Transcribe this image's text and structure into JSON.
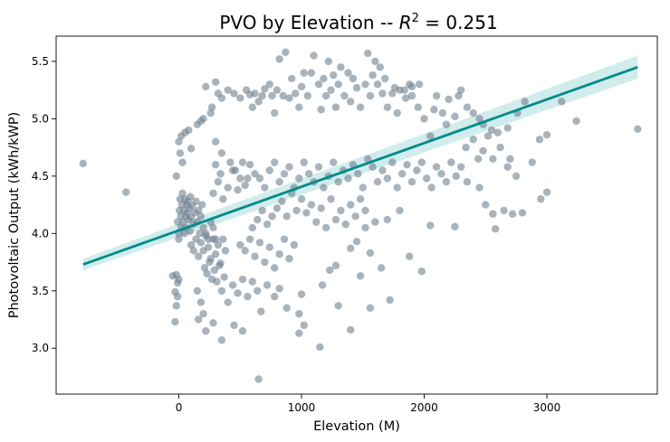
{
  "chart_data": {
    "type": "scatter",
    "title_prefix": "PVO by Elevation -- ",
    "title_r2_symbol": "R",
    "title_r2_exp": "2",
    "title_suffix": " = 0.251",
    "title": "PVO by Elevation -- R^2 = 0.251",
    "xlabel": "Elevation (M)",
    "ylabel": "Photovoltaic Output (kWh/kWP)",
    "xlim": [
      -1000,
      3900
    ],
    "ylim": [
      2.6,
      5.72
    ],
    "xticks": [
      0,
      1000,
      2000,
      3000
    ],
    "xtick_labels": [
      "0",
      "1000",
      "2000",
      "3000"
    ],
    "yticks": [
      3.0,
      3.5,
      4.0,
      4.5,
      5.0,
      5.5
    ],
    "ytick_labels": [
      "3.0",
      "3.5",
      "4.0",
      "4.5",
      "5.0",
      "5.5"
    ],
    "grid": false,
    "point_color": "#708090",
    "regression": {
      "x": [
        -780,
        3740
      ],
      "y": [
        3.73,
        5.45
      ],
      "ci_half_width": [
        0.05,
        0.1
      ],
      "line_color": "#008b8b",
      "band_color": "#b2dfdf"
    },
    "points": [
      [
        -780,
        4.61
      ],
      [
        -430,
        4.36
      ],
      [
        -50,
        3.63
      ],
      [
        -20,
        3.37
      ],
      [
        -30,
        3.23
      ],
      [
        -10,
        3.57
      ],
      [
        -20,
        3.64
      ],
      [
        -30,
        3.49
      ],
      [
        -10,
        3.45
      ],
      [
        0,
        3.6
      ],
      [
        0,
        3.95
      ],
      [
        -10,
        4.1
      ],
      [
        -20,
        4.5
      ],
      [
        0,
        4.8
      ],
      [
        10,
        4.7
      ],
      [
        20,
        4.85
      ],
      [
        30,
        4.62
      ],
      [
        50,
        4.88
      ],
      [
        80,
        4.9
      ],
      [
        100,
        4.74
      ],
      [
        0,
        4.0
      ],
      [
        5,
        4.2
      ],
      [
        10,
        4.3
      ],
      [
        15,
        4.15
      ],
      [
        20,
        4.05
      ],
      [
        25,
        4.25
      ],
      [
        30,
        4.35
      ],
      [
        35,
        4.1
      ],
      [
        40,
        4.2
      ],
      [
        45,
        4.0
      ],
      [
        50,
        4.3
      ],
      [
        55,
        4.15
      ],
      [
        60,
        4.05
      ],
      [
        65,
        4.25
      ],
      [
        70,
        4.18
      ],
      [
        75,
        4.28
      ],
      [
        80,
        4.12
      ],
      [
        85,
        4.22
      ],
      [
        90,
        4.02
      ],
      [
        95,
        4.32
      ],
      [
        100,
        4.14
      ],
      [
        110,
        4.24
      ],
      [
        120,
        4.08
      ],
      [
        130,
        4.18
      ],
      [
        140,
        4.28
      ],
      [
        150,
        4.1
      ],
      [
        160,
        4.2
      ],
      [
        170,
        4.0
      ],
      [
        180,
        4.15
      ],
      [
        190,
        4.25
      ],
      [
        100,
        3.9
      ],
      [
        120,
        3.85
      ],
      [
        140,
        3.95
      ],
      [
        160,
        3.8
      ],
      [
        180,
        3.92
      ],
      [
        200,
        3.85
      ],
      [
        220,
        3.98
      ],
      [
        240,
        3.88
      ],
      [
        260,
        3.78
      ],
      [
        280,
        3.95
      ],
      [
        300,
        3.82
      ],
      [
        320,
        3.9
      ],
      [
        340,
        3.74
      ],
      [
        360,
        3.95
      ],
      [
        380,
        3.85
      ],
      [
        200,
        4.05
      ],
      [
        220,
        4.0
      ],
      [
        240,
        3.95
      ],
      [
        260,
        4.1
      ],
      [
        280,
        4.05
      ],
      [
        300,
        3.95
      ],
      [
        210,
        3.7
      ],
      [
        230,
        3.65
      ],
      [
        250,
        3.75
      ],
      [
        270,
        3.6
      ],
      [
        290,
        3.68
      ],
      [
        310,
        3.58
      ],
      [
        330,
        3.72
      ],
      [
        350,
        3.5
      ],
      [
        370,
        3.62
      ],
      [
        150,
        3.5
      ],
      [
        180,
        3.4
      ],
      [
        200,
        3.3
      ],
      [
        160,
        3.25
      ],
      [
        220,
        3.15
      ],
      [
        280,
        3.22
      ],
      [
        350,
        3.07
      ],
      [
        450,
        3.2
      ],
      [
        520,
        3.15
      ],
      [
        650,
        2.73
      ],
      [
        670,
        3.32
      ],
      [
        720,
        3.55
      ],
      [
        780,
        3.45
      ],
      [
        820,
        3.52
      ],
      [
        880,
        3.35
      ],
      [
        980,
        3.3
      ],
      [
        1000,
        3.47
      ],
      [
        1020,
        3.2
      ],
      [
        980,
        3.13
      ],
      [
        1150,
        3.01
      ],
      [
        1170,
        3.55
      ],
      [
        1230,
        3.68
      ],
      [
        1280,
        3.72
      ],
      [
        1300,
        3.37
      ],
      [
        1400,
        3.16
      ],
      [
        1480,
        3.63
      ],
      [
        1560,
        3.35
      ],
      [
        1650,
        3.7
      ],
      [
        1720,
        3.42
      ],
      [
        1560,
        3.83
      ],
      [
        1400,
        3.87
      ],
      [
        1450,
        3.93
      ],
      [
        1520,
        4.05
      ],
      [
        1600,
        4.1
      ],
      [
        1700,
        4.12
      ],
      [
        1800,
        4.2
      ],
      [
        1880,
        3.8
      ],
      [
        1980,
        3.67
      ],
      [
        2050,
        4.07
      ],
      [
        2250,
        4.06
      ],
      [
        2350,
        4.45
      ],
      [
        2450,
        4.4
      ],
      [
        2500,
        4.25
      ],
      [
        2560,
        4.17
      ],
      [
        2580,
        4.04
      ],
      [
        2650,
        4.2
      ],
      [
        2720,
        4.17
      ],
      [
        2800,
        4.18
      ],
      [
        2950,
        4.3
      ],
      [
        3000,
        4.36
      ],
      [
        3000,
        4.86
      ],
      [
        2940,
        4.82
      ],
      [
        2880,
        4.62
      ],
      [
        2750,
        4.5
      ],
      [
        2700,
        4.65
      ],
      [
        2680,
        4.58
      ],
      [
        2620,
        4.75
      ],
      [
        2560,
        4.65
      ],
      [
        2550,
        4.9
      ],
      [
        2520,
        4.85
      ],
      [
        2480,
        4.95
      ],
      [
        2450,
        5.0
      ],
      [
        2400,
        5.05
      ],
      [
        2350,
        5.1
      ],
      [
        2300,
        5.25
      ],
      [
        2280,
        5.2
      ],
      [
        2250,
        5.02
      ],
      [
        2200,
        5.17
      ],
      [
        2180,
        4.95
      ],
      [
        2150,
        5.05
      ],
      [
        2100,
        5.2
      ],
      [
        2080,
        5.08
      ],
      [
        2050,
        4.85
      ],
      [
        2000,
        5.0
      ],
      [
        1950,
        5.1
      ],
      [
        1900,
        5.2
      ],
      [
        1880,
        5.3
      ],
      [
        1850,
        5.18
      ],
      [
        1800,
        5.25
      ],
      [
        1780,
        5.05
      ],
      [
        1760,
        5.27
      ],
      [
        1740,
        5.22
      ],
      [
        1700,
        5.1
      ],
      [
        1680,
        5.35
      ],
      [
        1660,
        5.22
      ],
      [
        1640,
        5.45
      ],
      [
        1620,
        5.3
      ],
      [
        1600,
        5.5
      ],
      [
        1580,
        5.38
      ],
      [
        1560,
        5.2
      ],
      [
        1540,
        5.57
      ],
      [
        1520,
        5.3
      ],
      [
        1480,
        5.1
      ],
      [
        1450,
        5.27
      ],
      [
        1420,
        5.35
      ],
      [
        1400,
        5.15
      ],
      [
        1380,
        5.4
      ],
      [
        1350,
        5.2
      ],
      [
        1320,
        5.45
      ],
      [
        1300,
        5.3
      ],
      [
        1280,
        5.1
      ],
      [
        1260,
        5.38
      ],
      [
        1240,
        5.25
      ],
      [
        1220,
        5.5
      ],
      [
        1200,
        5.2
      ],
      [
        1180,
        5.35
      ],
      [
        1160,
        5.08
      ],
      [
        1140,
        5.3
      ],
      [
        1100,
        5.55
      ],
      [
        1080,
        5.4
      ],
      [
        1050,
        5.2
      ],
      [
        1020,
        5.4
      ],
      [
        1000,
        5.28
      ],
      [
        980,
        5.1
      ],
      [
        950,
        5.22
      ],
      [
        920,
        5.35
      ],
      [
        900,
        5.18
      ],
      [
        870,
        5.58
      ],
      [
        850,
        5.2
      ],
      [
        820,
        5.52
      ],
      [
        800,
        5.25
      ],
      [
        780,
        5.05
      ],
      [
        760,
        5.2
      ],
      [
        740,
        5.3
      ],
      [
        700,
        5.26
      ],
      [
        680,
        5.2
      ],
      [
        650,
        5.15
      ],
      [
        620,
        5.22
      ],
      [
        600,
        5.1
      ],
      [
        580,
        5.21
      ],
      [
        550,
        5.25
      ],
      [
        500,
        5.18
      ],
      [
        450,
        5.22
      ],
      [
        400,
        5.25
      ],
      [
        350,
        5.18
      ],
      [
        320,
        5.22
      ],
      [
        300,
        5.32
      ],
      [
        270,
        5.1
      ],
      [
        260,
        5.05
      ],
      [
        220,
        5.28
      ],
      [
        200,
        5.0
      ],
      [
        180,
        4.98
      ],
      [
        150,
        4.95
      ],
      [
        300,
        4.8
      ],
      [
        350,
        4.7
      ],
      [
        420,
        4.62
      ],
      [
        460,
        4.55
      ],
      [
        500,
        4.48
      ],
      [
        540,
        4.42
      ],
      [
        580,
        4.6
      ],
      [
        620,
        4.52
      ],
      [
        660,
        4.48
      ],
      [
        700,
        4.4
      ],
      [
        740,
        4.55
      ],
      [
        780,
        4.62
      ],
      [
        820,
        4.45
      ],
      [
        860,
        4.52
      ],
      [
        900,
        4.58
      ],
      [
        940,
        4.4
      ],
      [
        980,
        4.48
      ],
      [
        1020,
        4.62
      ],
      [
        1060,
        4.52
      ],
      [
        1100,
        4.45
      ],
      [
        1140,
        4.58
      ],
      [
        1180,
        4.4
      ],
      [
        1220,
        4.5
      ],
      [
        1260,
        4.62
      ],
      [
        1300,
        4.45
      ],
      [
        1340,
        4.55
      ],
      [
        1380,
        4.48
      ],
      [
        1420,
        4.6
      ],
      [
        1460,
        4.52
      ],
      [
        1500,
        4.4
      ],
      [
        1540,
        4.65
      ],
      [
        1580,
        4.58
      ],
      [
        1620,
        4.45
      ],
      [
        1660,
        4.55
      ],
      [
        1700,
        4.48
      ],
      [
        1740,
        4.62
      ],
      [
        1780,
        4.4
      ],
      [
        1820,
        4.52
      ],
      [
        1860,
        4.6
      ],
      [
        1900,
        4.45
      ],
      [
        1940,
        4.55
      ],
      [
        1980,
        4.62
      ],
      [
        2020,
        4.48
      ],
      [
        2060,
        4.4
      ],
      [
        2100,
        4.58
      ],
      [
        2140,
        4.52
      ],
      [
        2180,
        4.45
      ],
      [
        2220,
        4.62
      ],
      [
        2260,
        4.5
      ],
      [
        2300,
        4.58
      ],
      [
        2340,
        4.75
      ],
      [
        2400,
        4.82
      ],
      [
        2440,
        4.65
      ],
      [
        2480,
        4.72
      ],
      [
        800,
        4.22
      ],
      [
        840,
        4.28
      ],
      [
        880,
        4.15
      ],
      [
        920,
        4.35
      ],
      [
        960,
        4.2
      ],
      [
        1000,
        4.3
      ],
      [
        1040,
        4.18
      ],
      [
        1080,
        4.25
      ],
      [
        1120,
        4.1
      ],
      [
        1160,
        4.22
      ],
      [
        1200,
        4.05
      ],
      [
        1240,
        4.3
      ],
      [
        1280,
        4.12
      ],
      [
        1320,
        4.2
      ],
      [
        1360,
        4.08
      ],
      [
        1400,
        4.25
      ],
      [
        1440,
        4.15
      ],
      [
        1480,
        4.3
      ],
      [
        1520,
        4.2
      ],
      [
        600,
        4.05
      ],
      [
        640,
        4.12
      ],
      [
        680,
        4.2
      ],
      [
        720,
        4.08
      ],
      [
        760,
        4.15
      ],
      [
        500,
        3.9
      ],
      [
        540,
        3.85
      ],
      [
        580,
        3.95
      ],
      [
        620,
        3.8
      ],
      [
        660,
        3.92
      ],
      [
        700,
        3.75
      ],
      [
        740,
        3.88
      ],
      [
        780,
        3.7
      ],
      [
        820,
        3.82
      ],
      [
        860,
        3.95
      ],
      [
        900,
        3.78
      ],
      [
        940,
        3.9
      ],
      [
        400,
        3.4
      ],
      [
        440,
        3.55
      ],
      [
        480,
        3.48
      ],
      [
        520,
        3.6
      ],
      [
        560,
        3.45
      ],
      [
        600,
        3.58
      ],
      [
        640,
        3.5
      ],
      [
        280,
        4.35
      ],
      [
        320,
        4.45
      ],
      [
        360,
        4.3
      ],
      [
        400,
        4.4
      ],
      [
        440,
        4.55
      ],
      [
        480,
        4.38
      ],
      [
        520,
        4.62
      ],
      [
        560,
        4.48
      ],
      [
        300,
        4.6
      ],
      [
        340,
        4.52
      ],
      [
        3240,
        4.98
      ],
      [
        3120,
        5.15
      ],
      [
        3740,
        4.91
      ],
      [
        2820,
        5.15
      ],
      [
        2760,
        5.05
      ],
      [
        2680,
        4.92
      ],
      [
        2600,
        4.88
      ],
      [
        1960,
        5.3
      ],
      [
        1900,
        5.28
      ],
      [
        1840,
        5.25
      ]
    ]
  }
}
